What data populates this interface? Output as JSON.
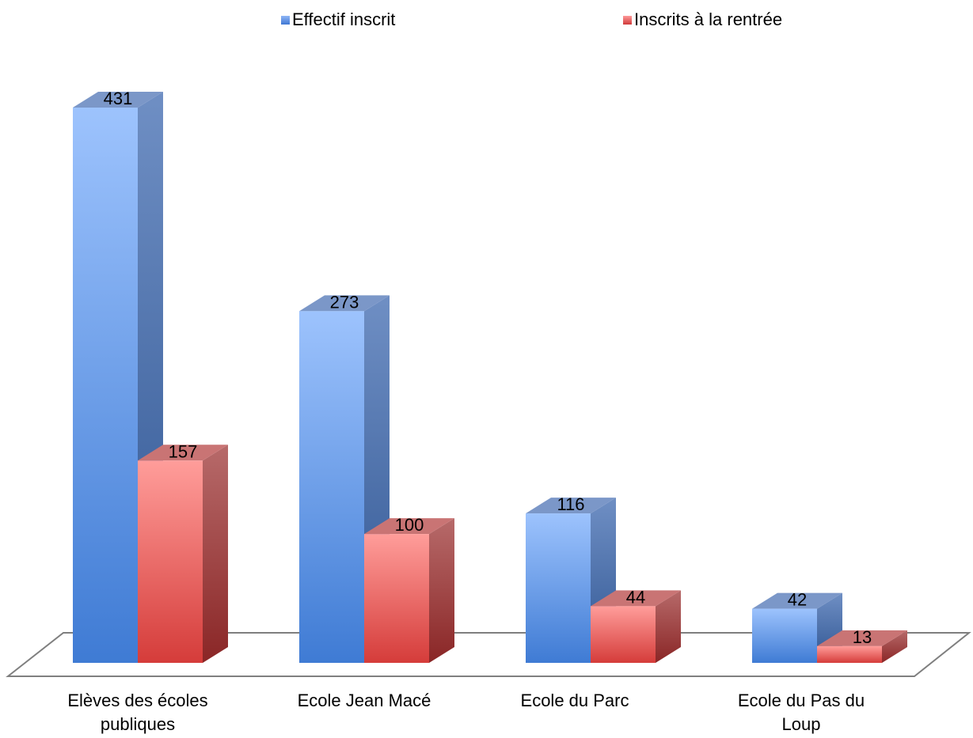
{
  "chart_data": {
    "type": "bar",
    "style": "3d-clustered-column",
    "categories": [
      "Elèves des écoles publiques",
      "Ecole Jean Macé",
      "Ecole du Parc",
      "Ecole du Pas du Loup"
    ],
    "category_labels": [
      [
        "Elèves des écoles",
        "publiques"
      ],
      [
        "Ecole Jean Macé"
      ],
      [
        "Ecole du Parc"
      ],
      [
        "Ecole du Pas du",
        "Loup"
      ]
    ],
    "series": [
      {
        "name": "Effectif inscrit",
        "values": [
          431,
          273,
          116,
          42
        ],
        "color": "#4f86d8"
      },
      {
        "name": "Inscrits à la rentrée",
        "values": [
          157,
          100,
          44,
          13
        ],
        "color": "#d84848"
      }
    ],
    "legend_position": "top",
    "data_labels": true,
    "grid": false,
    "ylim": [
      0,
      431
    ]
  }
}
